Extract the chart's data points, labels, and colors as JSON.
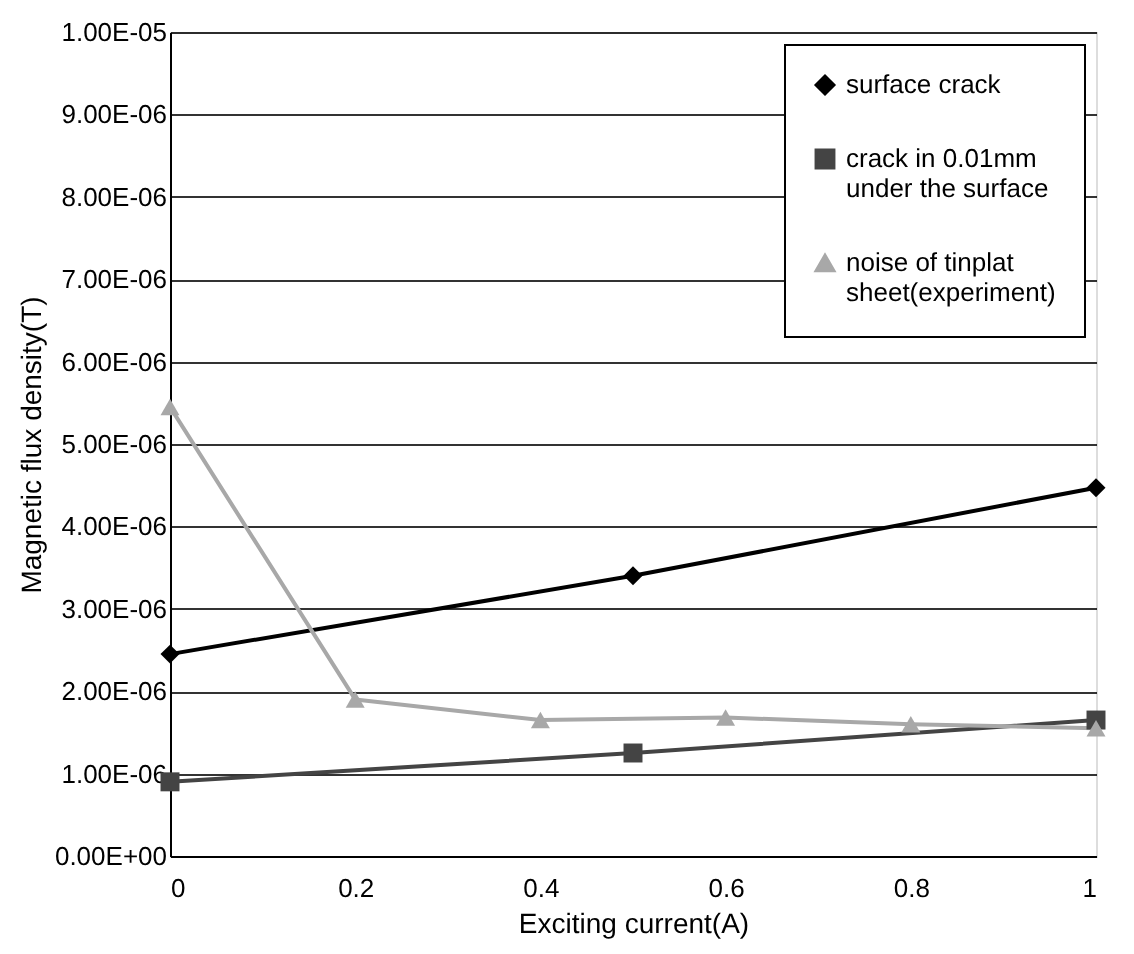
{
  "chart_data": {
    "type": "line",
    "xlabel": "Exciting current(A)",
    "ylabel": "Magnetic flux density(T)",
    "xlim": [
      0,
      1
    ],
    "xticks": [
      0,
      0.2,
      0.4,
      0.6,
      0.8,
      1
    ],
    "ylim": [
      0,
      1e-05
    ],
    "yticks": [
      {
        "value": 0,
        "label": "0.00E+00"
      },
      {
        "value": 1e-06,
        "label": "1.00E-06"
      },
      {
        "value": 2e-06,
        "label": "2.00E-06"
      },
      {
        "value": 3e-06,
        "label": "3.00E-06"
      },
      {
        "value": 4e-06,
        "label": "4.00E-06"
      },
      {
        "value": 5e-06,
        "label": "5.00E-06"
      },
      {
        "value": 6e-06,
        "label": "6.00E-06"
      },
      {
        "value": 7e-06,
        "label": "7.00E-06"
      },
      {
        "value": 8e-06,
        "label": "8.00E-06"
      },
      {
        "value": 9e-06,
        "label": "9.00E-06"
      },
      {
        "value": 1e-05,
        "label": "1.00E-05"
      }
    ],
    "grid": "y",
    "legend": "top right",
    "series": [
      {
        "name": "surface crack",
        "color": "#000000",
        "marker": "diamond",
        "x": [
          0,
          0.5,
          1
        ],
        "values": [
          2.45e-06,
          3.4e-06,
          4.47e-06
        ]
      },
      {
        "name": "crack in 0.01mm under the surface",
        "color": "#444444",
        "marker": "square",
        "x": [
          0,
          0.5,
          1
        ],
        "values": [
          9e-07,
          1.25e-06,
          1.65e-06
        ]
      },
      {
        "name": "noise of tinplat sheet(experiment)",
        "color": "#a8a8a8",
        "marker": "triangle",
        "x": [
          0,
          0.2,
          0.4,
          0.6,
          0.8,
          1
        ],
        "values": [
          5.45e-06,
          1.9e-06,
          1.65e-06,
          1.68e-06,
          1.6e-06,
          1.55e-06
        ]
      }
    ]
  }
}
